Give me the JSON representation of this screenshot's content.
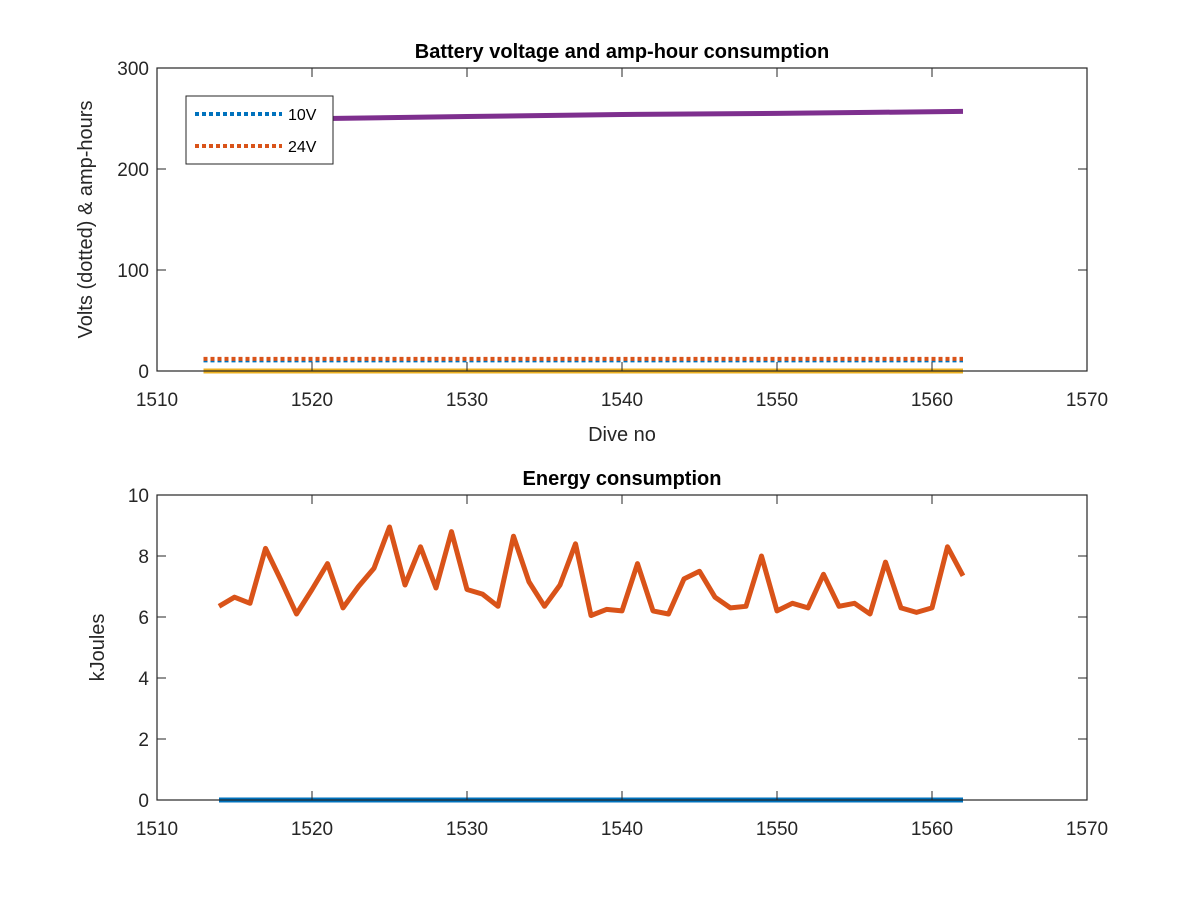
{
  "chart_data": [
    {
      "type": "line",
      "title": "Battery voltage and amp-hour consumption",
      "xlabel": "Dive no",
      "ylabel": "Volts (dotted) & amp-hours",
      "xlim": [
        1510,
        1570
      ],
      "ylim": [
        0,
        300
      ],
      "xticks": [
        "1510",
        "1520",
        "1530",
        "1540",
        "1550",
        "1560",
        "1570"
      ],
      "yticks": [
        "0",
        "100",
        "200",
        "300"
      ],
      "grid": false,
      "legend_position": "top-left",
      "series": [
        {
          "name": "10V",
          "color": "#0072BD",
          "style": "dotted",
          "x": [
            1513,
            1562
          ],
          "y": [
            10.5,
            10.5
          ]
        },
        {
          "name": "24V",
          "color": "#D95319",
          "style": "dotted",
          "x": [
            1513,
            1562
          ],
          "y": [
            12,
            12
          ]
        },
        {
          "color": "#EDB120",
          "style": "solid",
          "x": [
            1513,
            1562
          ],
          "y": [
            0,
            0
          ]
        },
        {
          "color": "#7E2F8E",
          "style": "solid",
          "x": [
            1521,
            1530,
            1540,
            1550,
            1556,
            1562
          ],
          "y": [
            250,
            252,
            254,
            255,
            256,
            257
          ]
        }
      ]
    },
    {
      "type": "line",
      "title": "Energy consumption",
      "xlabel": "",
      "ylabel": "kJoules",
      "xlim": [
        1510,
        1570
      ],
      "ylim": [
        0,
        10
      ],
      "xticks": [
        "1510",
        "1520",
        "1530",
        "1540",
        "1550",
        "1560",
        "1570"
      ],
      "yticks": [
        "0",
        "2",
        "4",
        "6",
        "8",
        "10"
      ],
      "grid": false,
      "series": [
        {
          "color": "#0072BD",
          "style": "solid",
          "x": [
            1514,
            1562
          ],
          "y": [
            0,
            0
          ]
        },
        {
          "color": "#D95319",
          "style": "solid",
          "x": [
            1514,
            1515,
            1516,
            1517,
            1518,
            1519,
            1520,
            1521,
            1522,
            1523,
            1524,
            1525,
            1526,
            1527,
            1528,
            1529,
            1530,
            1531,
            1532,
            1533,
            1534,
            1535,
            1536,
            1537,
            1538,
            1539,
            1540,
            1541,
            1542,
            1543,
            1544,
            1545,
            1546,
            1547,
            1548,
            1549,
            1550,
            1551,
            1552,
            1553,
            1554,
            1555,
            1556,
            1557,
            1558,
            1559,
            1560,
            1561,
            1562
          ],
          "y": [
            6.35,
            6.65,
            6.45,
            8.25,
            7.2,
            6.1,
            6.9,
            7.75,
            6.3,
            7.0,
            7.6,
            8.95,
            7.05,
            8.3,
            6.95,
            8.8,
            6.9,
            6.75,
            6.35,
            8.65,
            7.15,
            6.35,
            7.05,
            8.4,
            6.05,
            6.25,
            6.2,
            7.75,
            6.2,
            6.1,
            7.25,
            7.5,
            6.65,
            6.3,
            6.35,
            8.0,
            6.2,
            6.45,
            6.3,
            7.4,
            6.35,
            6.45,
            6.1,
            7.8,
            6.3,
            6.15,
            6.3,
            8.3,
            7.35
          ]
        }
      ]
    }
  ]
}
